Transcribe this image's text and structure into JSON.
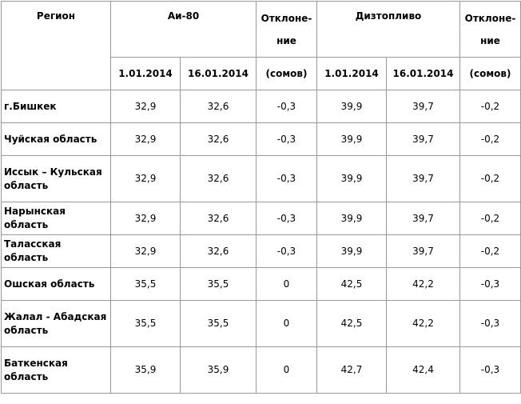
{
  "table": {
    "header": {
      "region": "Регион",
      "fuel1": "Аи-80",
      "deviation1_line1": "Отклоне-",
      "deviation1_line2": "ние",
      "fuel2": "Дизтопливо",
      "deviation2_line1": "Отклоне-",
      "deviation2_line2": "ние"
    },
    "subheader": {
      "date1": "1.01.2014",
      "date2": "16.01.2014",
      "unit1": "(сомов)",
      "date3": "1.01.2014",
      "date4": "16.01.2014",
      "unit2": "(сомов)"
    },
    "rows": [
      {
        "region": "г.Бишкек",
        "ai80_jan1": "32,9",
        "ai80_jan16": "32,6",
        "ai80_dev": "-0,3",
        "diesel_jan1": "39,9",
        "diesel_jan16": "39,7",
        "diesel_dev": "-0,2"
      },
      {
        "region": "Чуйская область",
        "ai80_jan1": "32,9",
        "ai80_jan16": "32,6",
        "ai80_dev": "-0,3",
        "diesel_jan1": "39,9",
        "diesel_jan16": "39,7",
        "diesel_dev": "-0,2"
      },
      {
        "region": "Иссык – Кульская область",
        "ai80_jan1": "32,9",
        "ai80_jan16": "32,6",
        "ai80_dev": "-0,3",
        "diesel_jan1": "39,9",
        "diesel_jan16": "39,7",
        "diesel_dev": "-0,2"
      },
      {
        "region": "Нарынская область",
        "ai80_jan1": "32,9",
        "ai80_jan16": "32,6",
        "ai80_dev": "-0,3",
        "diesel_jan1": "39,9",
        "diesel_jan16": "39,7",
        "diesel_dev": "-0,2"
      },
      {
        "region": "Таласская область",
        "ai80_jan1": "32,9",
        "ai80_jan16": "32,6",
        "ai80_dev": "-0,3",
        "diesel_jan1": "39,9",
        "diesel_jan16": "39,7",
        "diesel_dev": "-0,2"
      },
      {
        "region": "Ошская область",
        "ai80_jan1": "35,5",
        "ai80_jan16": "35,5",
        "ai80_dev": "0",
        "diesel_jan1": "42,5",
        "diesel_jan16": "42,2",
        "diesel_dev": "-0,3"
      },
      {
        "region": "Жалал - Абадская область",
        "ai80_jan1": "35,5",
        "ai80_jan16": "35,5",
        "ai80_dev": "0",
        "diesel_jan1": "42,5",
        "diesel_jan16": "42,2",
        "diesel_dev": "-0,3"
      },
      {
        "region": "Баткенская область",
        "ai80_jan1": "35,9",
        "ai80_jan16": "35,9",
        "ai80_dev": "0",
        "diesel_jan1": "42,7",
        "diesel_jan16": "42,4",
        "diesel_dev": "-0,3"
      }
    ]
  }
}
